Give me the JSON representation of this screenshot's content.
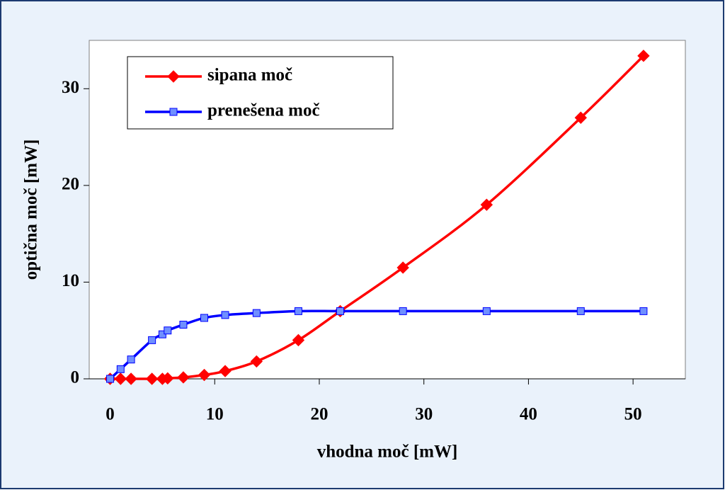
{
  "chart_data": {
    "type": "line",
    "xlabel": "vhodna moč [mW]",
    "ylabel": "optična moč [mW]",
    "x": [
      0,
      1,
      2,
      4,
      5,
      5.5,
      7,
      9,
      11,
      14,
      18,
      22,
      28,
      36,
      45,
      51
    ],
    "series": [
      {
        "name": "sipana moč",
        "color": "#ff0000",
        "marker": "diamond",
        "values": [
          0,
          0,
          0,
          0,
          0,
          0.05,
          0.15,
          0.4,
          0.8,
          1.8,
          4,
          7,
          11.5,
          18,
          27,
          33.4
        ]
      },
      {
        "name": "prenešena moč",
        "color": "#0000ff",
        "marker": "square",
        "values": [
          0,
          1,
          2,
          4,
          4.6,
          5,
          5.6,
          6.3,
          6.6,
          6.8,
          7,
          7,
          7,
          7,
          7,
          7
        ]
      }
    ],
    "xlim": [
      -2,
      55
    ],
    "xticks": [
      0,
      10,
      20,
      30,
      40,
      50
    ],
    "ylim": [
      0,
      35
    ],
    "yticks": [
      0,
      10,
      20,
      30
    ],
    "legend": "upper left"
  }
}
